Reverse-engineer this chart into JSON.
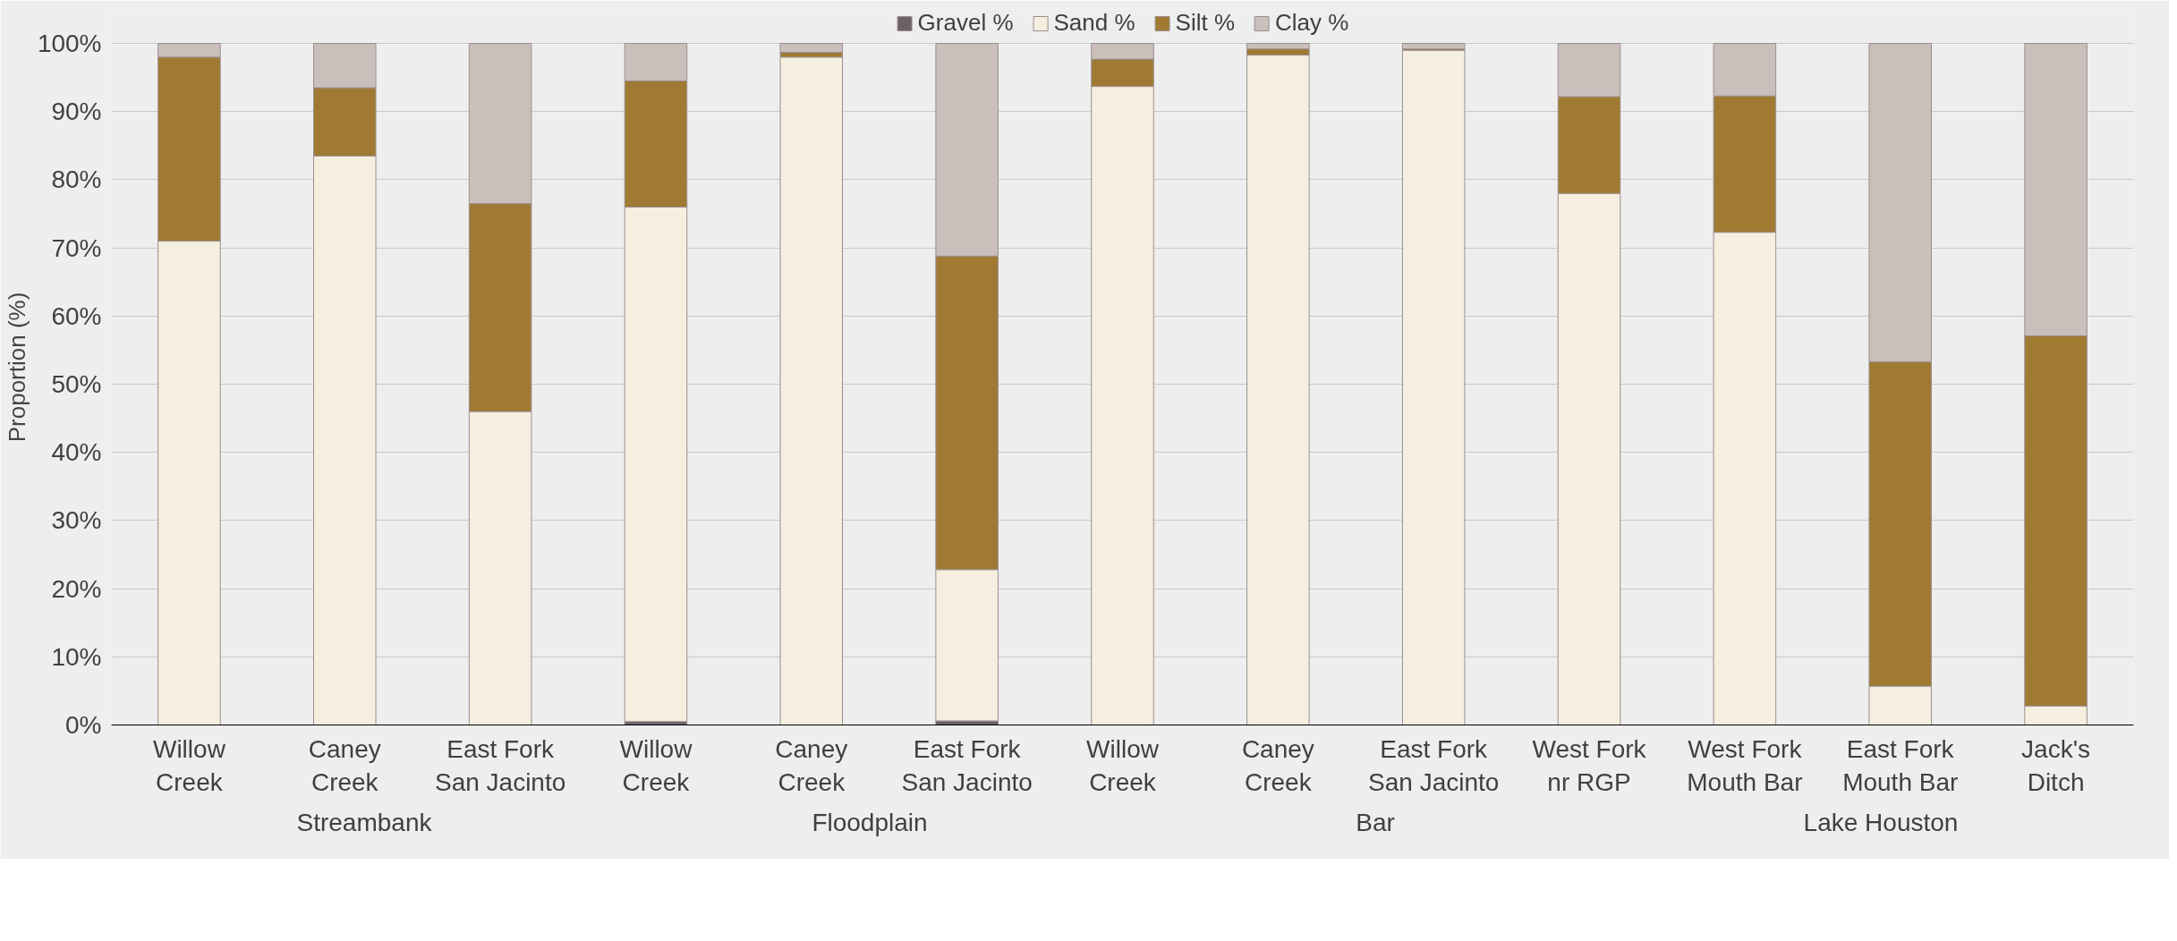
{
  "chart_data": {
    "type": "bar",
    "stacked": true,
    "ylabel": "Proportion (%)",
    "categories": [
      "Willow\nCreek",
      "Caney\nCreek",
      "East Fork\nSan Jacinto",
      "Willow\nCreek",
      "Caney\nCreek",
      "East Fork\nSan Jacinto",
      "Willow\nCreek",
      "Caney\nCreek",
      "East Fork\nSan Jacinto",
      "West Fork\nnr RGP",
      "West Fork\nMouth Bar",
      "East Fork\nMouth Bar",
      "Jack's\nDitch"
    ],
    "series": [
      {
        "name": "Gravel %",
        "color": "#6e6068",
        "values": [
          0,
          0,
          0,
          0.5,
          0,
          0.6,
          0,
          0,
          0,
          0,
          0,
          0,
          0
        ]
      },
      {
        "name": "Sand %",
        "color": "#f6efe0",
        "values": [
          71,
          83.5,
          46,
          75.5,
          98,
          22.2,
          93.7,
          98.3,
          99,
          78,
          72.3,
          5.7,
          2.8
        ]
      },
      {
        "name": "Silt %",
        "color": "#a07a33",
        "values": [
          27,
          10,
          30.5,
          18.5,
          0.7,
          46,
          4,
          0.9,
          0.2,
          14.2,
          20,
          47.6,
          54.3
        ]
      },
      {
        "name": "Clay %",
        "color": "#cbbfbc",
        "values": [
          2,
          6.5,
          23.5,
          5.5,
          1.3,
          31.2,
          2.3,
          0.8,
          0.8,
          7.8,
          7.7,
          46.7,
          42.9
        ]
      }
    ],
    "ylim": [
      0,
      105
    ],
    "yticks": [
      {
        "value": 0,
        "label": "0%"
      },
      {
        "value": 10,
        "label": "10%"
      },
      {
        "value": 20,
        "label": "20%"
      },
      {
        "value": 30,
        "label": "30%"
      },
      {
        "value": 40,
        "label": "40%"
      },
      {
        "value": 50,
        "label": "50%"
      },
      {
        "value": 60,
        "label": "60%"
      },
      {
        "value": 70,
        "label": "70%"
      },
      {
        "value": 80,
        "label": "80%"
      },
      {
        "value": 90,
        "label": "90%"
      },
      {
        "value": 100,
        "label": "100%"
      }
    ],
    "grid": "y",
    "legend": "top",
    "annotations": [
      "Streambank",
      "Floodplain",
      "Bar",
      "Lake Houston"
    ]
  }
}
